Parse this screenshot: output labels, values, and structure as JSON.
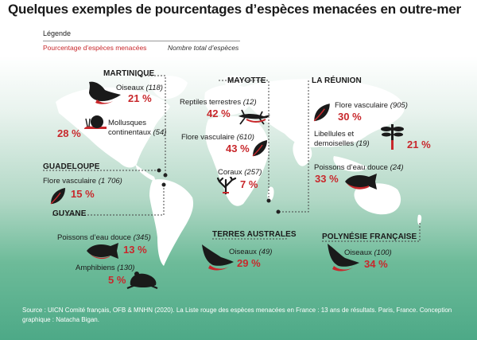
{
  "title": "Quelques exemples de pourcentages d’espèces menacées en outre-mer",
  "legend": {
    "title": "Légende",
    "red_label": "Pourcentage d’espèces menacées",
    "italic_label": "Nombre total d’espèces"
  },
  "regions": {
    "martinique": "MARTINIQUE",
    "mayotte": "MAYOTTE",
    "reunion": "LA RÉUNION",
    "guadeloupe": "GUADELOUPE",
    "guyane": "GUYANE",
    "terres_australes": "TERRES AUSTRALES",
    "polynesie": "POLYNÉSIE FRANÇAISE"
  },
  "items": {
    "mq_oiseaux": {
      "label": "Oiseaux",
      "count": "(118)",
      "percent": "21 %",
      "icon": "bird-icon"
    },
    "mq_mollusques": {
      "label1": "Mollusques",
      "label2": "continentaux",
      "count": "(54)",
      "percent": "28 %",
      "icon": "snail-icon"
    },
    "my_reptiles": {
      "label": "Reptiles terrestres",
      "count": "(12)",
      "percent": "42 %",
      "icon": "gecko-icon"
    },
    "my_flore": {
      "label": "Flore vasculaire",
      "count": "(610)",
      "percent": "43 %",
      "icon": "leaf-icon"
    },
    "my_coraux": {
      "label": "Coraux",
      "count": "(257)",
      "percent": "7 %",
      "icon": "coral-icon"
    },
    "re_flore": {
      "label": "Flore vasculaire",
      "count": "(905)",
      "percent": "30 %",
      "icon": "leaf-icon"
    },
    "re_libellules": {
      "label1": "Libellules et",
      "label2": "demoiselles",
      "count": "(19)",
      "percent": "21 %",
      "icon": "dragonfly-icon"
    },
    "re_poissons": {
      "label": "Poissons d’eau douce",
      "count": "(24)",
      "percent": "33 %",
      "icon": "fish-icon"
    },
    "gp_flore": {
      "label": "Flore vasculaire",
      "count": "(1 706)",
      "percent": "15 %",
      "icon": "leaf-icon"
    },
    "gy_poissons": {
      "label": "Poissons d’eau douce",
      "count": "(345)",
      "percent": "13 %",
      "icon": "fish-icon"
    },
    "gy_amphibiens": {
      "label": "Amphibiens",
      "count": "(130)",
      "percent": "5 %",
      "icon": "frog-icon"
    },
    "ta_oiseaux": {
      "label": "Oiseaux",
      "count": "(49)",
      "percent": "29 %",
      "icon": "bird-icon"
    },
    "pf_oiseaux": {
      "label": "Oiseaux",
      "count": "(100)",
      "percent": "34 %",
      "icon": "bird-icon"
    }
  },
  "source": "Source : UICN Comité français, OFB & MNHN (2020). La Liste rouge des espèces menacées en France : 13 ans de résultats. Paris, France. Conception graphique : Natacha Bigan.",
  "colors": {
    "accent_red": "#c8282c",
    "land": "#ffffff",
    "ocean_bottom": "#4da987",
    "text": "#1a1a1a"
  }
}
